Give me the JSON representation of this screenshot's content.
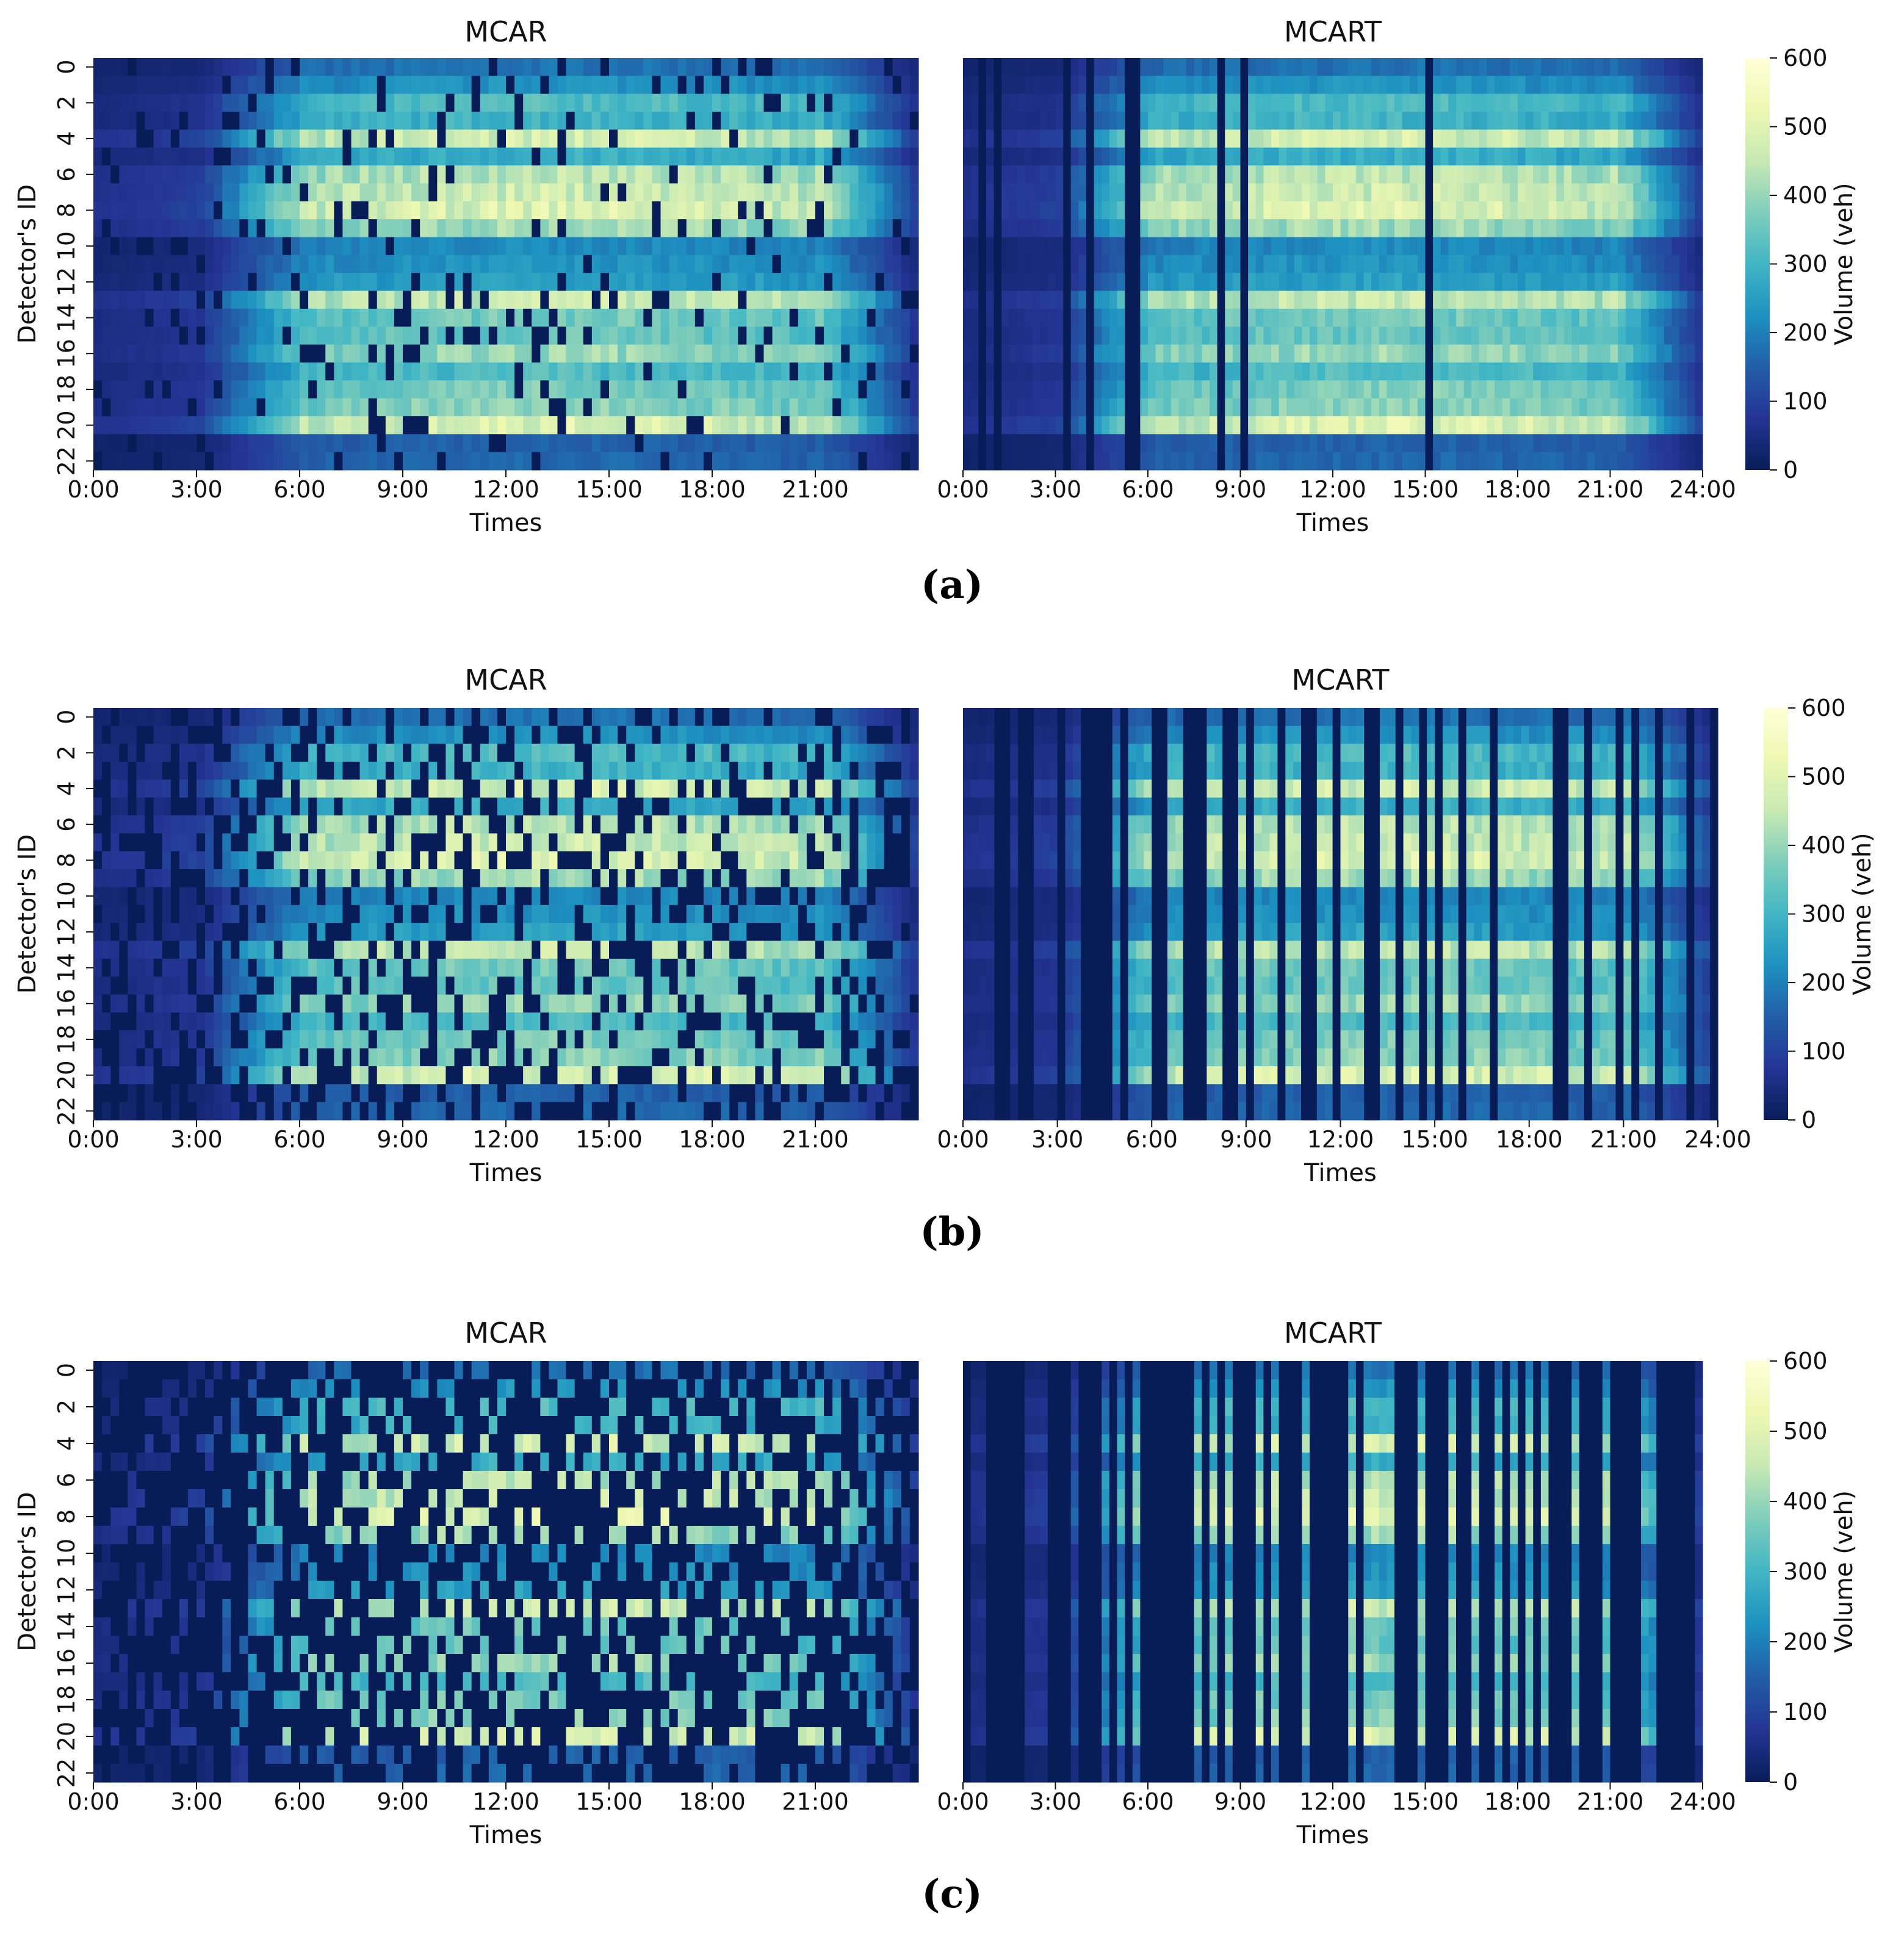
{
  "figure": {
    "panels": [
      {
        "label": "(a)"
      },
      {
        "label": "(b)"
      },
      {
        "label": "(c)"
      }
    ]
  },
  "chart_data": [
    {
      "type": "heatmap",
      "panel": "(a)",
      "title": "MCAR",
      "xlabel": "Times",
      "ylabel": "Detector's ID",
      "x_ticklabels": [
        "0:00",
        "3:00",
        "6:00",
        "9:00",
        "12:00",
        "15:00",
        "18:00",
        "21:00"
      ],
      "x_ticks_hours": [
        0,
        3,
        6,
        9,
        12,
        15,
        18,
        21
      ],
      "y_ticklabels": [
        "0",
        "2",
        "4",
        "6",
        "8",
        "10",
        "12",
        "14",
        "16",
        "18",
        "20",
        "22"
      ],
      "y_ticks": [
        0,
        2,
        4,
        6,
        8,
        10,
        12,
        14,
        16,
        18,
        20,
        22
      ],
      "x_range_hours": [
        0,
        24
      ],
      "n_detectors": 23,
      "missing_pattern": "MCAR",
      "missing_rate": 0.1,
      "colorscale": "YlGnBu",
      "value_range": [
        0,
        600
      ]
    },
    {
      "type": "heatmap",
      "panel": "(a)",
      "title": "MCART",
      "xlabel": "Times",
      "x_ticklabels": [
        "0:00",
        "3:00",
        "6:00",
        "9:00",
        "12:00",
        "15:00",
        "18:00",
        "21:00",
        "24:00"
      ],
      "x_ticks_hours": [
        0,
        3,
        6,
        9,
        12,
        15,
        18,
        21,
        24
      ],
      "x_range_hours": [
        0,
        24
      ],
      "n_detectors": 23,
      "missing_pattern": "MCART",
      "missing_rate": 0.1,
      "colorscale": "YlGnBu",
      "value_range": [
        0,
        600
      ],
      "colorbar": {
        "label": "Volume (veh)",
        "ticks": [
          "0",
          "100",
          "200",
          "300",
          "400",
          "500",
          "600"
        ]
      }
    },
    {
      "type": "heatmap",
      "panel": "(b)",
      "title": "MCAR",
      "xlabel": "Times",
      "ylabel": "Detector's ID",
      "x_ticklabels": [
        "0:00",
        "3:00",
        "6:00",
        "9:00",
        "12:00",
        "15:00",
        "18:00",
        "21:00"
      ],
      "x_ticks_hours": [
        0,
        3,
        6,
        9,
        12,
        15,
        18,
        21
      ],
      "y_ticklabels": [
        "0",
        "2",
        "4",
        "6",
        "8",
        "10",
        "12",
        "14",
        "16",
        "18",
        "20",
        "22"
      ],
      "y_ticks": [
        0,
        2,
        4,
        6,
        8,
        10,
        12,
        14,
        16,
        18,
        20,
        22
      ],
      "x_range_hours": [
        0,
        24
      ],
      "n_detectors": 23,
      "missing_pattern": "MCAR",
      "missing_rate": 0.3,
      "colorscale": "YlGnBu",
      "value_range": [
        0,
        600
      ]
    },
    {
      "type": "heatmap",
      "panel": "(b)",
      "title": "MCART",
      "xlabel": "Times",
      "x_ticklabels": [
        "0:00",
        "3:00",
        "6:00",
        "9:00",
        "12:00",
        "15:00",
        "18:00",
        "21:00",
        "24:00"
      ],
      "x_ticks_hours": [
        0,
        3,
        6,
        9,
        12,
        15,
        18,
        21,
        24
      ],
      "x_range_hours": [
        0,
        24
      ],
      "n_detectors": 23,
      "missing_pattern": "MCART",
      "missing_rate": 0.3,
      "colorscale": "YlGnBu",
      "value_range": [
        0,
        600
      ],
      "colorbar": {
        "label": "Volume (veh)",
        "ticks": [
          "0",
          "100",
          "200",
          "300",
          "400",
          "500",
          "600"
        ]
      }
    },
    {
      "type": "heatmap",
      "panel": "(c)",
      "title": "MCAR",
      "xlabel": "Times",
      "ylabel": "Detector's ID",
      "x_ticklabels": [
        "0:00",
        "3:00",
        "6:00",
        "9:00",
        "12:00",
        "15:00",
        "18:00",
        "21:00"
      ],
      "x_ticks_hours": [
        0,
        3,
        6,
        9,
        12,
        15,
        18,
        21
      ],
      "y_ticklabels": [
        "0",
        "2",
        "4",
        "6",
        "8",
        "10",
        "12",
        "14",
        "16",
        "18",
        "20",
        "22"
      ],
      "y_ticks": [
        0,
        2,
        4,
        6,
        8,
        10,
        12,
        14,
        16,
        18,
        20,
        22
      ],
      "x_range_hours": [
        0,
        24
      ],
      "n_detectors": 23,
      "missing_pattern": "MCAR",
      "missing_rate": 0.6,
      "colorscale": "YlGnBu",
      "value_range": [
        0,
        600
      ]
    },
    {
      "type": "heatmap",
      "panel": "(c)",
      "title": "MCART",
      "xlabel": "Times",
      "x_ticklabels": [
        "0:00",
        "3:00",
        "6:00",
        "9:00",
        "12:00",
        "15:00",
        "18:00",
        "21:00",
        "24:00"
      ],
      "x_ticks_hours": [
        0,
        3,
        6,
        9,
        12,
        15,
        18,
        21,
        24
      ],
      "x_range_hours": [
        0,
        24
      ],
      "n_detectors": 23,
      "missing_pattern": "MCART",
      "missing_rate": 0.6,
      "colorscale": "YlGnBu",
      "value_range": [
        0,
        600
      ],
      "colorbar": {
        "label": "Volume (veh)",
        "ticks": [
          "0",
          "100",
          "200",
          "300",
          "400",
          "500",
          "600"
        ]
      }
    }
  ]
}
